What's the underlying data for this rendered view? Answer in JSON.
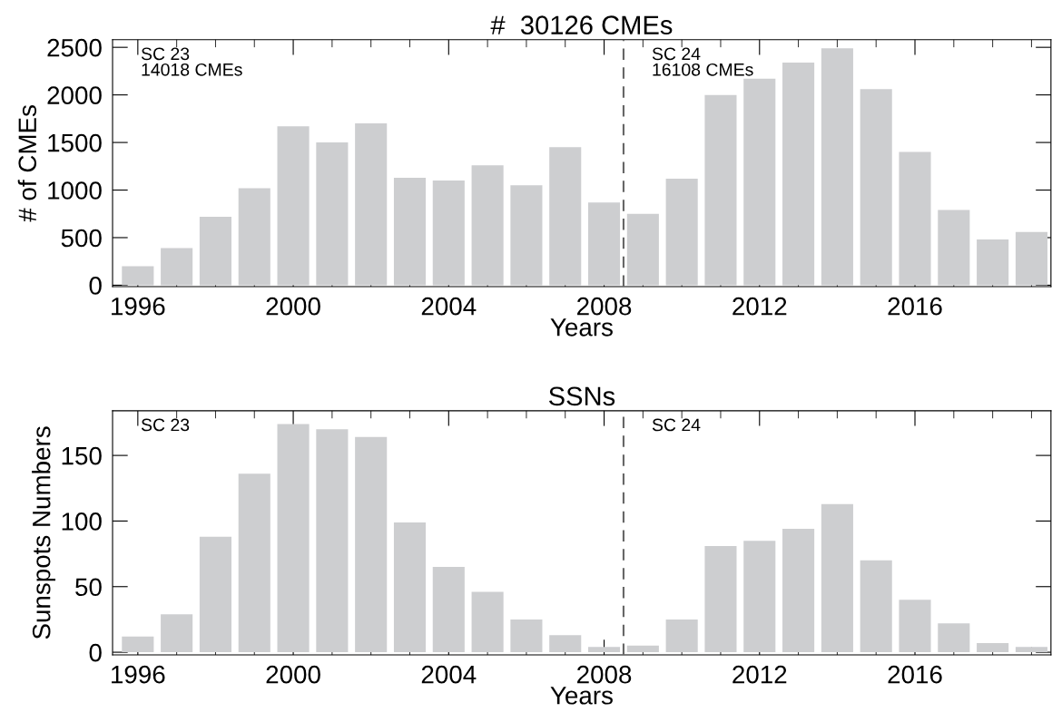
{
  "chart_data": [
    {
      "type": "bar",
      "title": "#  30126 CMEs",
      "xlabel": "Years",
      "ylabel": "# of CMEs",
      "x": [
        1996,
        1997,
        1998,
        1999,
        2000,
        2001,
        2002,
        2003,
        2004,
        2005,
        2006,
        2007,
        2008,
        2009,
        2010,
        2011,
        2012,
        2013,
        2014,
        2015,
        2016,
        2017,
        2018,
        2019
      ],
      "values": [
        200,
        390,
        720,
        1020,
        1670,
        1500,
        1700,
        1130,
        1100,
        1260,
        1050,
        1450,
        870,
        750,
        1120,
        2000,
        2170,
        2340,
        2490,
        2060,
        1400,
        790,
        480,
        560
      ],
      "color": "#cdced0",
      "xlim": [
        1995.35,
        2019.5
      ],
      "xticks": [
        1996,
        2000,
        2004,
        2008,
        2012,
        2016
      ],
      "ylim": [
        -15,
        2580
      ],
      "yticks": [
        0,
        500,
        1000,
        1500,
        2000,
        2500
      ],
      "ref_lines": [
        {
          "axis": "x",
          "value": 2008.5,
          "line_style": "dashed",
          "color": "#666666"
        }
      ],
      "annotations": [
        "SC 23\n14018 CMEs",
        "SC 24\n16108 CMEs"
      ],
      "grid": false,
      "legend": false
    },
    {
      "type": "bar",
      "title": "SSNs",
      "xlabel": "Years",
      "ylabel": "Sunspots Numbers",
      "x": [
        1996,
        1997,
        1998,
        1999,
        2000,
        2001,
        2002,
        2003,
        2004,
        2005,
        2006,
        2007,
        2008,
        2009,
        2010,
        2011,
        2012,
        2013,
        2014,
        2015,
        2016,
        2017,
        2018,
        2019
      ],
      "values": [
        12,
        29,
        88,
        136,
        174,
        170,
        164,
        99,
        65,
        46,
        25,
        13,
        4,
        5,
        25,
        81,
        85,
        94,
        113,
        70,
        40,
        22,
        7,
        4
      ],
      "color": "#cdced0",
      "xlim": [
        1995.35,
        2019.5
      ],
      "xticks": [
        1996,
        2000,
        2004,
        2008,
        2012,
        2016
      ],
      "ylim": [
        -2,
        184
      ],
      "yticks": [
        0,
        50,
        100,
        150
      ],
      "ref_lines": [
        {
          "axis": "x",
          "value": 2008.5,
          "line_style": "dashed",
          "color": "#666666"
        }
      ],
      "annotations": [
        "SC 23",
        "SC 24"
      ],
      "grid": false,
      "legend": false
    }
  ]
}
